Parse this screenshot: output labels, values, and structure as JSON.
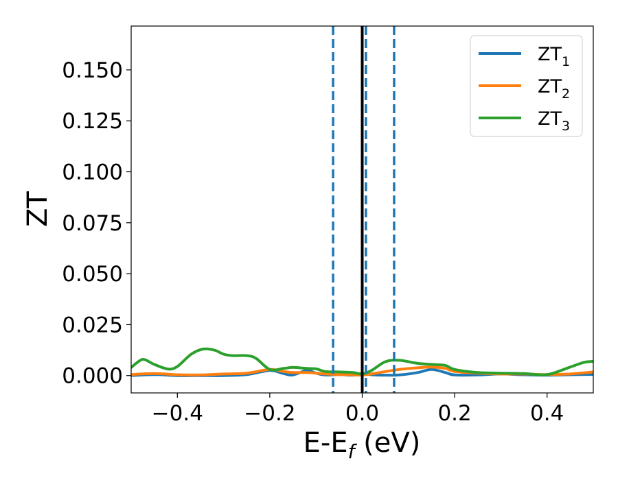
{
  "chart_data": {
    "type": "line",
    "xlabel_main": "E-E",
    "xlabel_sub": "f",
    "xlabel_tail": " (eV)",
    "ylabel": "ZT",
    "xlim": [
      -0.5,
      0.5
    ],
    "ylim": [
      -0.0085,
      0.1715
    ],
    "x_ticks": [
      -0.4,
      -0.2,
      0.0,
      0.2,
      0.4
    ],
    "x_tick_labels": [
      "−0.4",
      "−0.2",
      "0.0",
      "0.2",
      "0.4"
    ],
    "y_ticks": [
      0.0,
      0.025,
      0.05,
      0.075,
      0.1,
      0.125,
      0.15
    ],
    "y_tick_labels": [
      "0.000",
      "0.025",
      "0.050",
      "0.075",
      "0.100",
      "0.125",
      "0.150"
    ],
    "grid": false,
    "legend_position": "top-right",
    "vertical_lines": [
      {
        "x": -0.063,
        "style": "dashed",
        "color": "#1f77b4"
      },
      {
        "x": 0.0,
        "style": "solid",
        "color": "#000000"
      },
      {
        "x": 0.008,
        "style": "dashed",
        "color": "#1f77b4"
      },
      {
        "x": 0.069,
        "style": "dashed",
        "color": "#1f77b4"
      }
    ],
    "series": [
      {
        "name_main": "ZT",
        "name_sub": "1",
        "color": "#1f77b4",
        "x": [
          -0.5,
          -0.45,
          -0.4,
          -0.35,
          -0.3,
          -0.25,
          -0.2,
          -0.17,
          -0.15,
          -0.12,
          -0.1,
          -0.08,
          -0.05,
          -0.02,
          0.0,
          0.02,
          0.05,
          0.08,
          0.12,
          0.15,
          0.18,
          0.2,
          0.25,
          0.3,
          0.35,
          0.4,
          0.45,
          0.5
        ],
        "y": [
          0.0,
          0.0005,
          0.0,
          0.0,
          0.0,
          0.0005,
          0.0025,
          0.001,
          0.0003,
          0.0025,
          0.0012,
          0.0003,
          0.0005,
          0.0002,
          0.001,
          0.0004,
          0.0002,
          0.0003,
          0.0015,
          0.003,
          0.0015,
          0.0003,
          0.0003,
          0.0008,
          0.0004,
          0.0002,
          0.0004,
          0.0006
        ]
      },
      {
        "name_main": "ZT",
        "name_sub": "2",
        "color": "#ff7f0e",
        "x": [
          -0.5,
          -0.45,
          -0.4,
          -0.35,
          -0.3,
          -0.25,
          -0.2,
          -0.17,
          -0.15,
          -0.12,
          -0.1,
          -0.08,
          -0.05,
          -0.02,
          0.0,
          0.02,
          0.05,
          0.08,
          0.12,
          0.15,
          0.18,
          0.2,
          0.25,
          0.3,
          0.35,
          0.4,
          0.45,
          0.5
        ],
        "y": [
          0.0005,
          0.001,
          0.0004,
          0.0003,
          0.0008,
          0.0012,
          0.003,
          0.002,
          0.0015,
          0.0015,
          0.0012,
          0.0008,
          0.0005,
          0.0003,
          0.0003,
          0.0008,
          0.002,
          0.003,
          0.0038,
          0.0042,
          0.0035,
          0.002,
          0.0012,
          0.0008,
          0.0008,
          0.0005,
          0.0008,
          0.0018
        ]
      },
      {
        "name_main": "ZT",
        "name_sub": "3",
        "color": "#2ca02c",
        "x": [
          -0.5,
          -0.48,
          -0.47,
          -0.45,
          -0.42,
          -0.4,
          -0.37,
          -0.345,
          -0.32,
          -0.3,
          -0.28,
          -0.25,
          -0.23,
          -0.2,
          -0.17,
          -0.15,
          -0.12,
          -0.1,
          -0.08,
          -0.05,
          -0.02,
          0.0,
          0.02,
          0.05,
          0.08,
          0.12,
          0.15,
          0.18,
          0.2,
          0.25,
          0.3,
          0.35,
          0.4,
          0.45,
          0.48,
          0.5
        ],
        "y": [
          0.004,
          0.0075,
          0.0078,
          0.0055,
          0.0032,
          0.0045,
          0.0105,
          0.013,
          0.0125,
          0.0105,
          0.0098,
          0.0098,
          0.0085,
          0.003,
          0.0035,
          0.004,
          0.0035,
          0.0033,
          0.002,
          0.0018,
          0.0015,
          0.0008,
          0.0025,
          0.0068,
          0.0075,
          0.006,
          0.0055,
          0.005,
          0.003,
          0.0015,
          0.0012,
          0.001,
          0.0005,
          0.0042,
          0.0065,
          0.007
        ]
      }
    ]
  }
}
